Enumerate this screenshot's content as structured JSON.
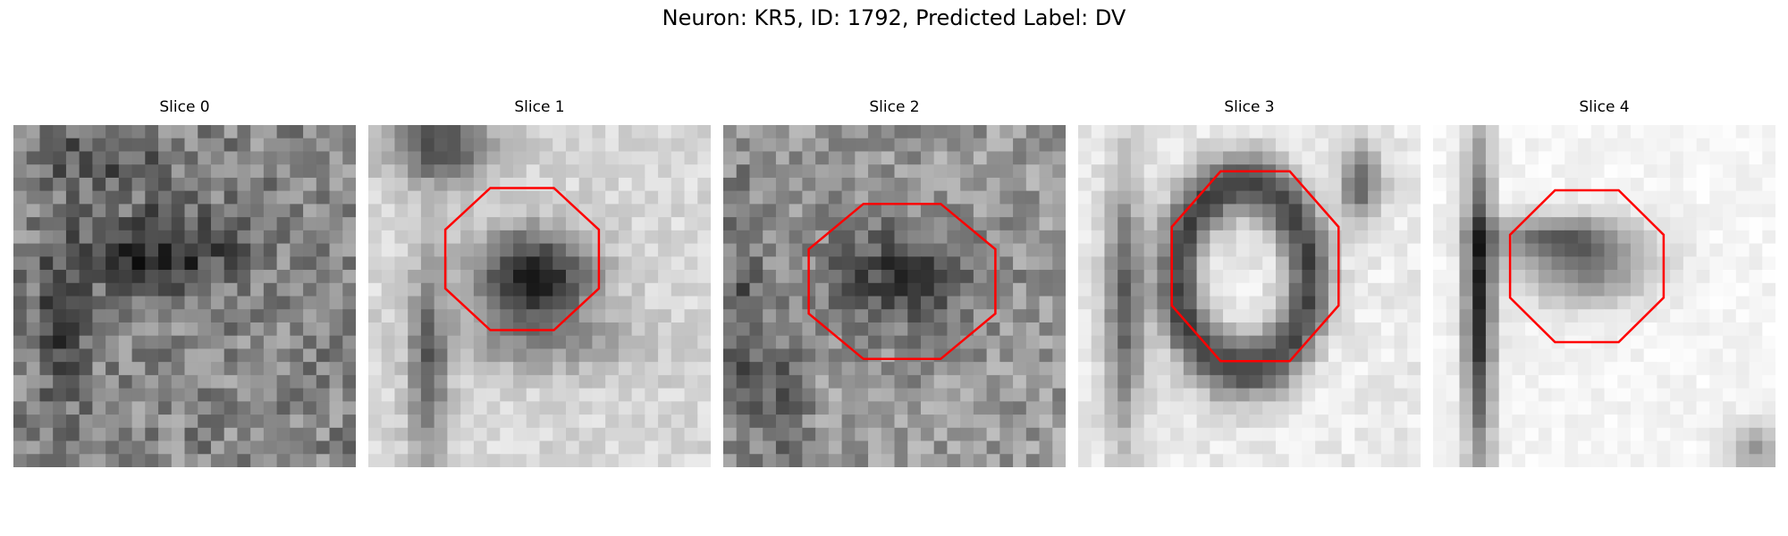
{
  "figure": {
    "title": "Neuron: KR5, ID: 1792, Predicted Label: DV"
  },
  "panels": [
    {
      "title": "Slice 0",
      "roi": false,
      "seed": 11,
      "style": "noisy"
    },
    {
      "title": "Slice 1",
      "roi": true,
      "seed": 23,
      "style": "cell"
    },
    {
      "title": "Slice 2",
      "roi": true,
      "seed": 37,
      "style": "mid"
    },
    {
      "title": "Slice 3",
      "roi": true,
      "seed": 41,
      "style": "ring"
    },
    {
      "title": "Slice 4",
      "roi": true,
      "seed": 53,
      "style": "light"
    }
  ],
  "colors": {
    "roi_outline": "#ff0000",
    "colormap": "gray_r"
  },
  "image_grid": {
    "rows": 26,
    "cols": 26
  }
}
